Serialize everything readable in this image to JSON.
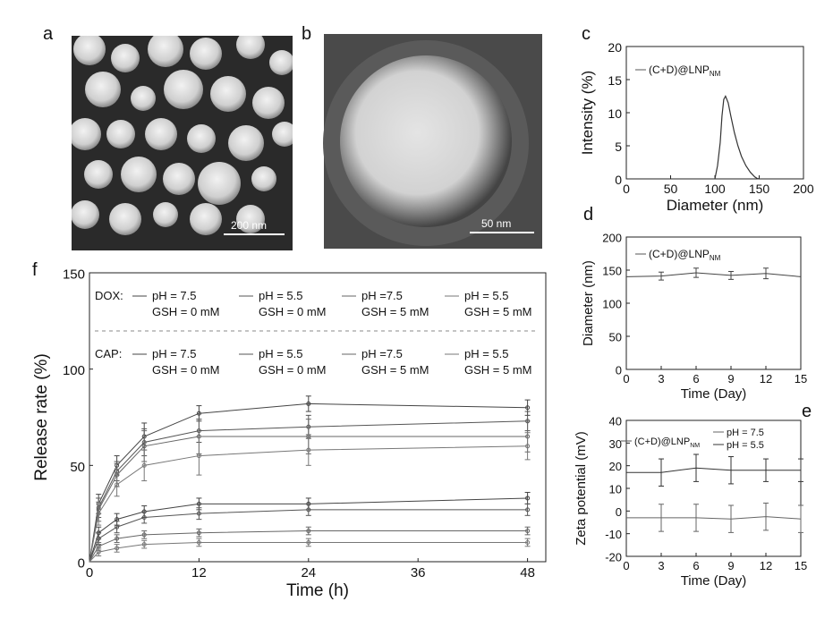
{
  "panel_letters": {
    "a": "a",
    "b": "b",
    "c": "c",
    "d": "d",
    "e": "e",
    "f": "f"
  },
  "scale_bars": {
    "a": "200 nm",
    "b": "50 nm"
  },
  "chart_data": [
    {
      "id": "c",
      "type": "line",
      "xlabel": "Diameter (nm)",
      "ylabel": "Intensity (%)",
      "xlim": [
        0,
        200
      ],
      "ylim": [
        0,
        20
      ],
      "xticks": [
        "0",
        "50",
        "100",
        "150",
        "200"
      ],
      "yticks": [
        "0",
        "5",
        "10",
        "15",
        "20"
      ],
      "legend": {
        "label": "(C+D)@LNP",
        "sub": "NM"
      },
      "series": [
        {
          "x": [
            100,
            103,
            106,
            108,
            110,
            112,
            115,
            118,
            122,
            126,
            130,
            135,
            140,
            145,
            148,
            150
          ],
          "y": [
            0,
            2,
            5.5,
            9.5,
            12,
            12.5,
            11.5,
            9.5,
            7,
            5,
            3.4,
            2,
            1,
            0.3,
            0.05,
            0
          ]
        }
      ]
    },
    {
      "id": "d",
      "type": "line",
      "xlabel": "Time (Day)",
      "ylabel": "Diameter (nm)",
      "xlim": [
        0,
        15
      ],
      "ylim": [
        0,
        200
      ],
      "xticks": [
        "0",
        "3",
        "6",
        "9",
        "12",
        "15"
      ],
      "yticks": [
        "0",
        "50",
        "100",
        "150",
        "200"
      ],
      "legend": {
        "label": "(C+D)@LNP",
        "sub": "NM"
      },
      "series": [
        {
          "x": [
            0,
            3,
            6,
            9,
            12,
            15
          ],
          "y": [
            140,
            141,
            146,
            142,
            145,
            140
          ],
          "err": [
            0,
            6,
            7,
            6,
            8,
            0
          ]
        }
      ]
    },
    {
      "id": "e",
      "type": "line",
      "xlabel": "Time (Day)",
      "ylabel": "Zeta potential (mV)",
      "xlim": [
        0,
        15
      ],
      "ylim": [
        -20,
        40
      ],
      "xticks": [
        "0",
        "3",
        "6",
        "9",
        "12",
        "15"
      ],
      "yticks": [
        "-20",
        "-10",
        "0",
        "10",
        "20",
        "30",
        "40"
      ],
      "legend_prefix": {
        "label": "(C+D)@LNP",
        "sub": "NM"
      },
      "series": [
        {
          "name": "pH = 7.5",
          "x": [
            0,
            3,
            6,
            9,
            12,
            15
          ],
          "y": [
            -3,
            -3,
            -3,
            -3.5,
            -2.5,
            -3.5
          ],
          "err": [
            0,
            6,
            6,
            6,
            6,
            6
          ]
        },
        {
          "name": "pH = 5.5",
          "x": [
            0,
            3,
            6,
            9,
            12,
            15
          ],
          "y": [
            17,
            17,
            19,
            18,
            18,
            18
          ],
          "err": [
            0,
            6,
            6,
            6,
            5,
            5
          ]
        }
      ]
    },
    {
      "id": "f",
      "type": "line",
      "xlabel": "Time (h)",
      "ylabel": "Release rate (%)",
      "xlim": [
        0,
        50
      ],
      "ylim": [
        0,
        150
      ],
      "xticks": [
        0,
        12,
        24,
        36,
        48
      ],
      "yticks": [
        0,
        50,
        100,
        150
      ],
      "groups": [
        "DOX:",
        "CAP:"
      ],
      "legend_lines": [
        [
          "pH = 7.5",
          "GSH = 0 mM"
        ],
        [
          "pH = 5.5",
          "GSH = 0 mM"
        ],
        [
          "pH =7.5",
          "GSH = 5 mM"
        ],
        [
          "pH = 5.5",
          "GSH = 5 mM"
        ]
      ],
      "x": [
        0,
        1,
        3,
        6,
        12,
        24,
        48
      ],
      "series": [
        {
          "group": "DOX",
          "y": [
            0,
            30,
            50,
            65,
            77,
            82,
            80
          ],
          "err": [
            0,
            5,
            5,
            7,
            4,
            4,
            4
          ]
        },
        {
          "group": "DOX",
          "y": [
            0,
            28,
            47,
            62,
            68,
            70,
            73
          ],
          "err": [
            0,
            5,
            5,
            7,
            6,
            6,
            5
          ]
        },
        {
          "group": "DOX",
          "y": [
            0,
            27,
            45,
            60,
            65,
            65,
            65
          ],
          "err": [
            0,
            6,
            6,
            8,
            9,
            9,
            8
          ]
        },
        {
          "group": "DOX",
          "y": [
            0,
            25,
            40,
            50,
            55,
            58,
            60
          ],
          "err": [
            0,
            6,
            6,
            8,
            10,
            8,
            7
          ]
        },
        {
          "group": "CAP",
          "y": [
            0,
            15,
            22,
            26,
            30,
            30,
            33
          ],
          "err": [
            0,
            3,
            3,
            3,
            3,
            3,
            3
          ]
        },
        {
          "group": "CAP",
          "y": [
            0,
            12,
            18,
            23,
            25,
            27,
            27
          ],
          "err": [
            0,
            3,
            3,
            3,
            3,
            3,
            3
          ]
        },
        {
          "group": "CAP",
          "y": [
            0,
            8,
            12,
            14,
            15,
            16,
            16
          ],
          "err": [
            0,
            2,
            2,
            2,
            2,
            2,
            2
          ]
        },
        {
          "group": "CAP",
          "y": [
            0,
            5,
            7,
            9,
            10,
            10,
            10
          ],
          "err": [
            0,
            2,
            2,
            2,
            2,
            2,
            2
          ]
        }
      ]
    }
  ]
}
